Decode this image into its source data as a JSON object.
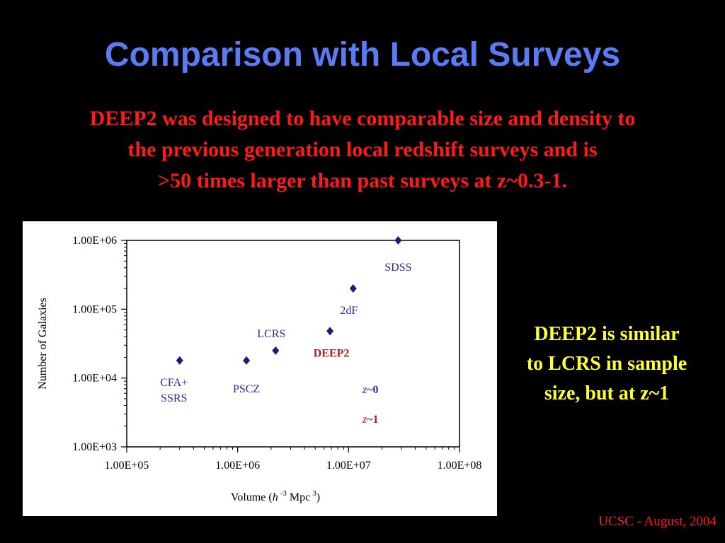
{
  "slide": {
    "title": "Comparison with Local Surveys",
    "intro_lines": [
      "DEEP2 was designed to have comparable size and density to",
      "the previous generation local redshift surveys and is",
      ">50 times larger than past surveys at z~0.3-1."
    ],
    "note_lines": [
      "DEEP2 is similar",
      "to LCRS in sample",
      "size, but at z~1"
    ],
    "footer": "UCSC - August, 2004"
  },
  "colors": {
    "background": "#000000",
    "title": "#5b7bf5",
    "intro": "#ff1a1a",
    "note": "#ffff33",
    "point": "#1a1a80",
    "label_local": "#2b2b99",
    "label_deep2": "#b01a1a"
  },
  "chart_data": {
    "type": "scatter",
    "xscale": "log",
    "yscale": "log",
    "xlim": [
      100000,
      100000000
    ],
    "ylim": [
      1000,
      1000000
    ],
    "xticks": [
      "1.00E+05",
      "1.00E+06",
      "1.00E+07",
      "1.00E+08"
    ],
    "yticks": [
      "1.00E+03",
      "1.00E+04",
      "1.00E+05",
      "1.00E+06"
    ],
    "xlabel": {
      "prefix": "Volume (",
      "h": "h",
      "exp": "-3",
      "mid": " Mpc",
      "exp2": "3",
      "suffix": ")"
    },
    "ylabel": "Number of Galaxies",
    "points": [
      {
        "name": "CFA+ SSRS",
        "label_lines": [
          "CFA+",
          "SSRS"
        ],
        "x": 300000,
        "y": 18000,
        "label_color": "#2b2b99"
      },
      {
        "name": "PSCZ",
        "label_lines": [
          "PSCZ"
        ],
        "x": 1200000,
        "y": 18000,
        "label_color": "#2b2b99"
      },
      {
        "name": "LCRS",
        "label_lines": [
          "LCRS"
        ],
        "x": 2200000,
        "y": 25000,
        "label_color": "#2b2b99"
      },
      {
        "name": "DEEP2",
        "label_lines": [
          "DEEP2"
        ],
        "x": 6800000,
        "y": 48000,
        "label_color": "#b01a1a"
      },
      {
        "name": "2dF",
        "label_lines": [
          "2dF"
        ],
        "x": 11000000,
        "y": 200000,
        "label_color": "#2b2b99"
      },
      {
        "name": "SDSS",
        "label_lines": [
          "SDSS"
        ],
        "x": 28000000,
        "y": 1000000,
        "label_color": "#2b2b99"
      }
    ],
    "legend_text": [
      {
        "italic": "z",
        "rest": "~0",
        "color": "#2b2b99"
      },
      {
        "italic": "z",
        "rest": "~1",
        "color": "#b01a1a"
      }
    ],
    "grid": false
  }
}
